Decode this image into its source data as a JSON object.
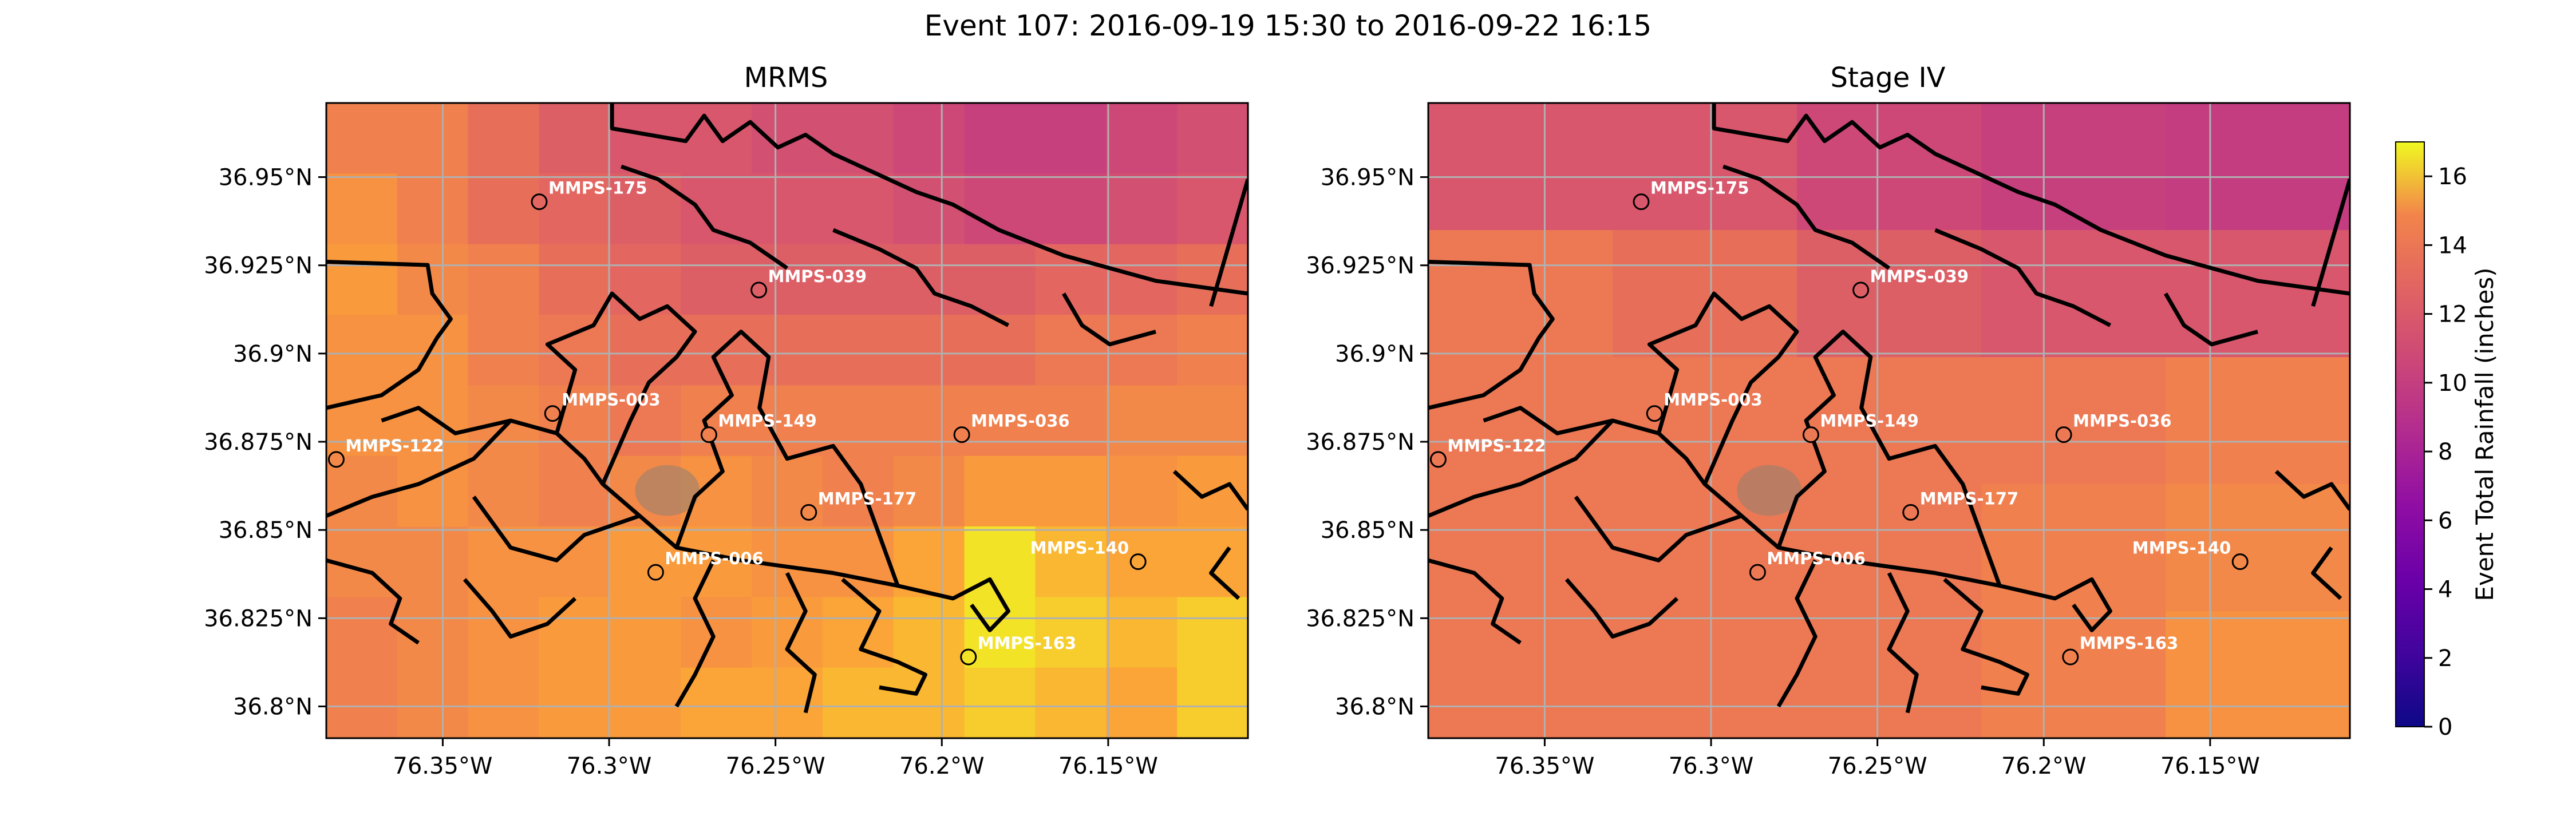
{
  "chart_data": {
    "type": "heatmap",
    "title": "Event 107: 2016-09-19 15:30 to 2016-09-22 16:15",
    "colormap": "plasma",
    "colorbar": {
      "label": "Event Total Rainfall (inches)",
      "range": [
        0,
        17
      ],
      "ticks": [
        "0",
        "2",
        "4",
        "6",
        "8",
        "10",
        "12",
        "14",
        "16"
      ],
      "placement": "right"
    },
    "lon_range": [
      -76.385,
      -76.108
    ],
    "lat_range": [
      36.791,
      36.971
    ],
    "x_ticks": [
      {
        "value": -76.35,
        "label": "76.35°W"
      },
      {
        "value": -76.3,
        "label": "76.3°W"
      },
      {
        "value": -76.25,
        "label": "76.25°W"
      },
      {
        "value": -76.2,
        "label": "76.2°W"
      },
      {
        "value": -76.15,
        "label": "76.15°W"
      }
    ],
    "y_ticks": [
      {
        "value": 36.95,
        "label": "36.95°N"
      },
      {
        "value": 36.925,
        "label": "36.925°N"
      },
      {
        "value": 36.9,
        "label": "36.9°N"
      },
      {
        "value": 36.875,
        "label": "36.875°N"
      },
      {
        "value": 36.85,
        "label": "36.85°N"
      },
      {
        "value": 36.825,
        "label": "36.825°N"
      },
      {
        "value": 36.8,
        "label": "36.8°N"
      }
    ],
    "grid": true,
    "stations": [
      {
        "name": "MMPS-175",
        "lon": -76.321,
        "lat": 36.943
      },
      {
        "name": "MMPS-039",
        "lon": -76.255,
        "lat": 36.918
      },
      {
        "name": "MMPS-003",
        "lon": -76.317,
        "lat": 36.883
      },
      {
        "name": "MMPS-149",
        "lon": -76.27,
        "lat": 36.877
      },
      {
        "name": "MMPS-122",
        "lon": -76.382,
        "lat": 36.87
      },
      {
        "name": "MMPS-036",
        "lon": -76.194,
        "lat": 36.877
      },
      {
        "name": "MMPS-177",
        "lon": -76.24,
        "lat": 36.855
      },
      {
        "name": "MMPS-006",
        "lon": -76.286,
        "lat": 36.838
      },
      {
        "name": "MMPS-140",
        "lon": -76.141,
        "lat": 36.841
      },
      {
        "name": "MMPS-163",
        "lon": -76.192,
        "lat": 36.814
      }
    ],
    "panels": [
      {
        "title": "MRMS",
        "rows": 9,
        "cols": 13,
        "values": [
          [
            13,
            13,
            12,
            11,
            10.5,
            10.5,
            10,
            10,
            9.5,
            9,
            9,
            9.5,
            10
          ],
          [
            14,
            13,
            12,
            11.5,
            11,
            10.5,
            10.5,
            10.5,
            10,
            9.5,
            9.5,
            10,
            10.5
          ],
          [
            14.5,
            13.5,
            13,
            12,
            11.5,
            11,
            11,
            11,
            11,
            11,
            11.5,
            11.5,
            12
          ],
          [
            14,
            14,
            13,
            12.5,
            12,
            12,
            12,
            12,
            12,
            12,
            12.5,
            12.5,
            13
          ],
          [
            14,
            14,
            13.5,
            13,
            12.5,
            13,
            13,
            13,
            13,
            13,
            13,
            13.5,
            13.5
          ],
          [
            13.5,
            14,
            13.5,
            13,
            13.5,
            14,
            13.5,
            13,
            13.5,
            14.5,
            14.5,
            14,
            14.5
          ],
          [
            13.5,
            13.5,
            14,
            14,
            14.5,
            14.5,
            14,
            14,
            15,
            16.5,
            15.5,
            15,
            15
          ],
          [
            13,
            13.5,
            14,
            14.5,
            14.5,
            14,
            14.5,
            15,
            15.5,
            16.5,
            16,
            15.5,
            16
          ],
          [
            13,
            13.5,
            14,
            14.5,
            14.5,
            15,
            15,
            15.5,
            15.5,
            16,
            15.5,
            15,
            16
          ]
        ]
      },
      {
        "title": "Stage IV",
        "rows": 5,
        "cols": 5,
        "values": [
          [
            10.5,
            10.5,
            9.5,
            9,
            8.8
          ],
          [
            12.5,
            12,
            11,
            10.5,
            10.5
          ],
          [
            12.5,
            12.5,
            12.5,
            12.5,
            13
          ],
          [
            12.5,
            12.5,
            12.5,
            13,
            13.5
          ],
          [
            12.5,
            12.5,
            12.5,
            13,
            14
          ]
        ]
      }
    ]
  }
}
